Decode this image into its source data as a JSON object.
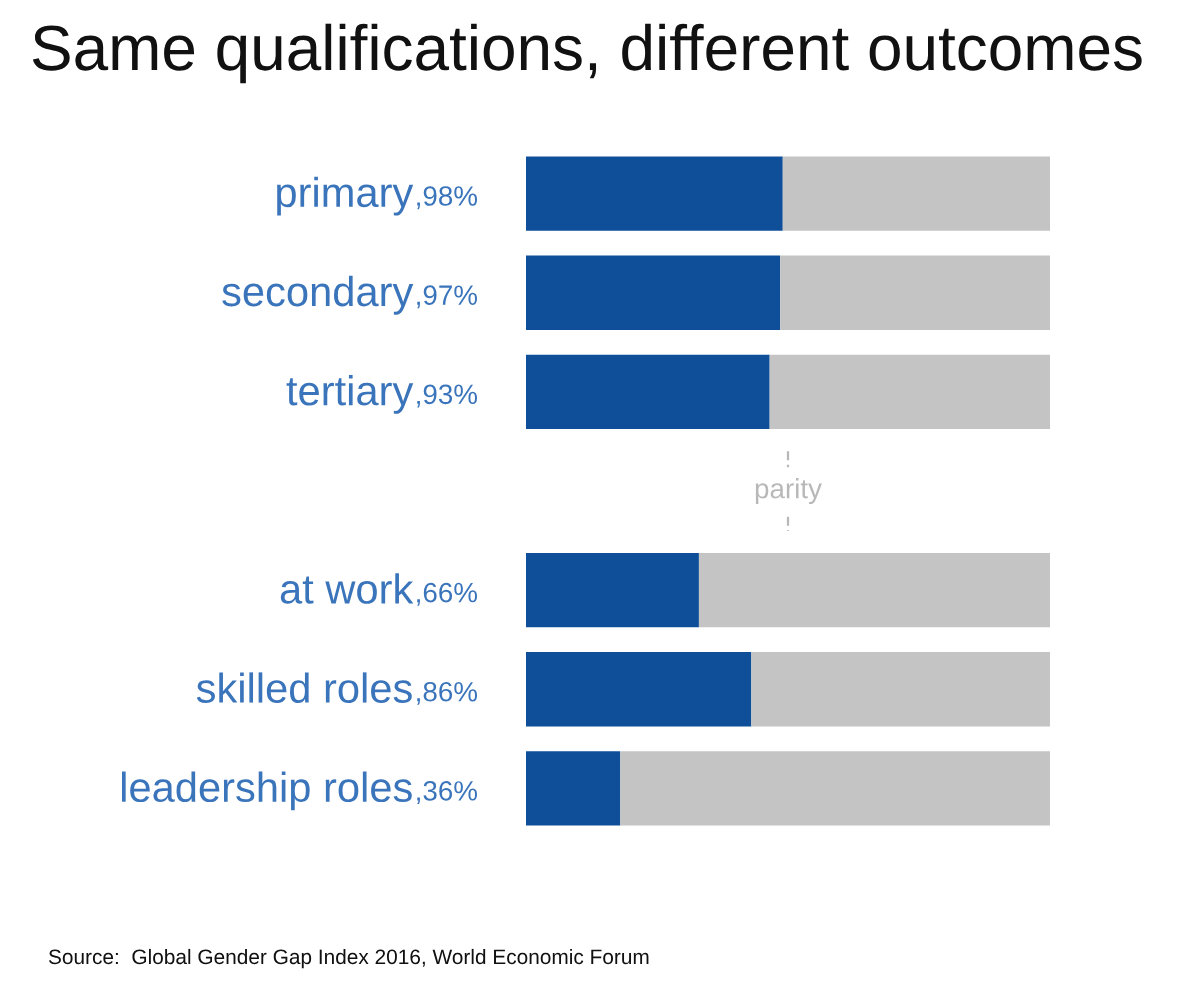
{
  "chart_data": {
    "type": "bar",
    "title": "Same qualifications, different outcomes",
    "orientation": "horizontal",
    "stacked": true,
    "categories": [
      "primary",
      "secondary",
      "tertiary",
      null,
      "at work",
      "skilled roles",
      "leadership roles"
    ],
    "series": [
      {
        "color": "#0f4f9a",
        "values": [
          98,
          97,
          93,
          null,
          66,
          86,
          36
        ],
        "value_labels": [
          ",98%",
          ",97%",
          ",93%",
          null,
          ",66%",
          ",86%",
          ",36%"
        ]
      },
      {
        "color": "#c4c4c4",
        "values": [
          102,
          103,
          107,
          null,
          134,
          114,
          164
        ]
      }
    ],
    "xlim": [
      0,
      200
    ],
    "tick_labels": "y",
    "ref_lines": [
      {
        "axis": "x",
        "value": 100,
        "label": "parity",
        "color": "#b8b8b8",
        "line_style": "dashed"
      }
    ],
    "annotations": [
      "Source:  Global Gender Gap Index 2016, World Economic Forum"
    ]
  }
}
